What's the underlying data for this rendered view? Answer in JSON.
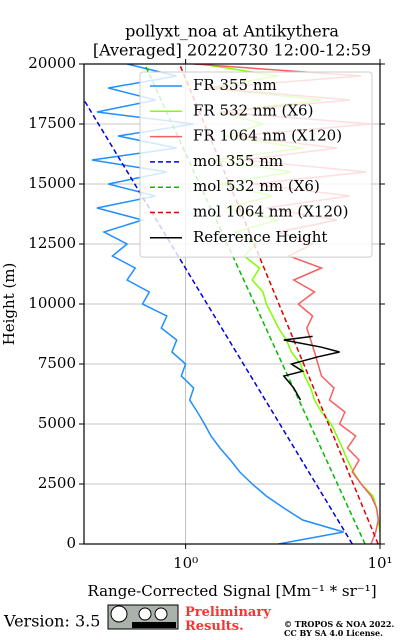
{
  "chart_data": {
    "type": "line",
    "title": "pollyxt_noa at Antikythera",
    "subtitle": "[Averaged] 20220730 12:00-12:59",
    "xlabel": "Range-Corrected Signal [Mm⁻¹ * sr⁻¹]",
    "ylabel": "Height (m)",
    "xscale": "log",
    "xlim": [
      0.3,
      10
    ],
    "ylim": [
      0,
      20000
    ],
    "xticks": [
      {
        "value": 1,
        "label": "10⁰"
      },
      {
        "value": 10,
        "label": "10¹"
      }
    ],
    "yticks": [
      0,
      2500,
      5000,
      7500,
      10000,
      12500,
      15000,
      17500,
      20000
    ],
    "grid": true,
    "legend": "upper right",
    "series": [
      {
        "name": "FR 355 nm",
        "color": "#1f8fff",
        "dash": false,
        "heights": [
          0,
          500,
          1000,
          1500,
          2000,
          2500,
          3000,
          3500,
          4000,
          4500,
          5000,
          5500,
          6000,
          6500,
          7000,
          7500,
          8000,
          8500,
          9000,
          9500,
          10000,
          10500,
          11000,
          11500,
          12000,
          12500,
          13000,
          13500,
          14000,
          14500,
          15000,
          15500,
          16000,
          16500,
          17000,
          17500,
          18000,
          18500,
          19000,
          19500,
          20000
        ],
        "values": [
          3.0,
          6.5,
          4.0,
          3.2,
          2.6,
          2.2,
          1.9,
          1.7,
          1.5,
          1.35,
          1.25,
          1.15,
          1.05,
          1.1,
          0.95,
          1.0,
          0.85,
          0.9,
          0.75,
          0.8,
          0.6,
          0.65,
          0.5,
          0.55,
          0.42,
          0.5,
          0.38,
          0.6,
          0.35,
          0.7,
          0.4,
          0.8,
          0.33,
          0.9,
          0.45,
          1.1,
          0.35,
          0.7,
          0.4,
          0.9,
          0.5
        ]
      },
      {
        "name": "FR 532 nm (X6)",
        "color": "#80ff00",
        "dash": false,
        "heights": [
          0,
          500,
          1000,
          1500,
          2000,
          2500,
          3000,
          3500,
          4000,
          4500,
          5000,
          5500,
          6000,
          6500,
          7000,
          7500,
          8000,
          8500,
          9000,
          9500,
          10000,
          10500,
          11000,
          11500,
          12000,
          12500,
          13000,
          13500,
          14000,
          14500,
          15000,
          15500,
          16000,
          16500,
          17000,
          17500,
          18000,
          18500,
          19000,
          19500,
          20000
        ],
        "values": [
          10.5,
          10,
          9.8,
          9.6,
          9.2,
          8.0,
          7.3,
          6.8,
          6.4,
          6.0,
          5.6,
          5.0,
          4.6,
          4.4,
          4.1,
          3.9,
          3.5,
          3.3,
          3.0,
          2.8,
          2.6,
          2.5,
          2.2,
          2.4,
          2.0,
          2.3,
          1.8,
          3.0,
          1.6,
          2.8,
          1.5,
          3.5,
          1.4,
          4.0,
          1.6,
          2.5,
          1.5,
          5.0,
          1.3,
          3.0,
          1.2
        ]
      },
      {
        "name": "FR 1064 nm (X120)",
        "color": "#f86060",
        "dash": false,
        "heights": [
          0,
          500,
          1000,
          1500,
          2000,
          2500,
          3000,
          3500,
          4000,
          4500,
          5000,
          5500,
          6000,
          6500,
          7000,
          7500,
          8000,
          8500,
          9000,
          9500,
          10000,
          10500,
          11000,
          11500,
          12000,
          12500,
          13000,
          13500,
          14000,
          14500,
          15000,
          15500,
          16000,
          16500,
          17000,
          17500,
          18000,
          18500,
          19000,
          19500,
          20000
        ],
        "values": [
          9.0,
          9.5,
          9.8,
          9.6,
          9.0,
          8.0,
          7.2,
          7.8,
          6.8,
          7.5,
          6.2,
          6.6,
          5.5,
          5.8,
          5.0,
          4.8,
          4.6,
          4.4,
          4.2,
          4.5,
          3.8,
          4.6,
          3.6,
          5.0,
          3.4,
          4.5,
          3.0,
          6.0,
          2.6,
          7.0,
          2.2,
          8.5,
          2.0,
          6.0,
          1.8,
          9.0,
          1.5,
          7.0,
          1.3,
          8.0,
          1.1
        ]
      },
      {
        "name": "mol 355 nm",
        "color": "#0000dd",
        "dash": true,
        "heights": [
          0,
          5000,
          10000,
          15000,
          18500
        ],
        "values": [
          7.2,
          3.05,
          1.29,
          0.547,
          0.3
        ]
      },
      {
        "name": "mol 532 nm (X6)",
        "color": "#00bb00",
        "dash": true,
        "heights": [
          0,
          5000,
          10000,
          15000,
          20000
        ],
        "values": [
          8.37,
          4.36,
          2.27,
          1.18,
          0.615
        ]
      },
      {
        "name": "mol 1064 nm (X120)",
        "color": "#dd0000",
        "dash": true,
        "heights": [
          0,
          5000,
          10000,
          15000,
          20000
        ],
        "values": [
          9.78,
          5.43,
          3.02,
          1.68,
          0.93
        ]
      },
      {
        "name": "Reference Height",
        "color": "#000000",
        "dash": false,
        "heights": [
          6000,
          6500,
          7000,
          7200,
          7500,
          7800,
          8000,
          8200,
          8500,
          8650
        ],
        "values": [
          3.9,
          3.6,
          3.2,
          4.0,
          3.5,
          4.8,
          6.2,
          5.0,
          3.2,
          4.5
        ]
      }
    ],
    "footer": {
      "version": "Version: 3.5",
      "notice": "Preliminary Results.",
      "copyright": "© TROPOS & NOA 2022.",
      "license": "CC BY SA 4.0 License."
    }
  }
}
